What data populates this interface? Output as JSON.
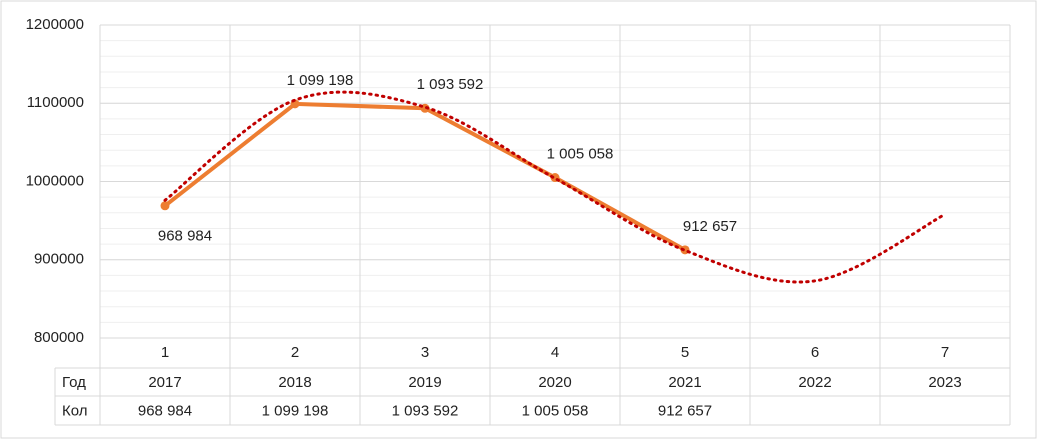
{
  "chart_data": {
    "type": "line",
    "categories": [
      "1",
      "2",
      "3",
      "4",
      "5",
      "6",
      "7"
    ],
    "series": [
      {
        "name": "Кол",
        "color": "#ed7d31",
        "values": [
          968984,
          1099198,
          1093592,
          1005058,
          912657,
          null,
          null
        ],
        "value_labels": [
          "968 984",
          "1 099 198",
          "1 093 592",
          "1 005 058",
          "912 657",
          null,
          null
        ]
      },
      {
        "color": "#c00000",
        "trendline": true,
        "dotted": true,
        "values": [
          976000,
          1104000,
          1095000,
          1004000,
          912000,
          873000,
          958000
        ]
      }
    ],
    "table": {
      "rows": [
        {
          "label": "Год",
          "cells": [
            "2017",
            "2018",
            "2019",
            "2020",
            "2021",
            "2022",
            "2023"
          ]
        },
        {
          "label": "Кол",
          "cells": [
            "968 984",
            "1 099 198",
            "1 093 592",
            "1 005 058",
            "912 657",
            null,
            null
          ]
        }
      ]
    },
    "ylim": [
      800000,
      1200000
    ],
    "yticks": [
      800000,
      900000,
      1000000,
      1100000,
      1200000
    ],
    "minor_step": 20000,
    "grid": true
  }
}
